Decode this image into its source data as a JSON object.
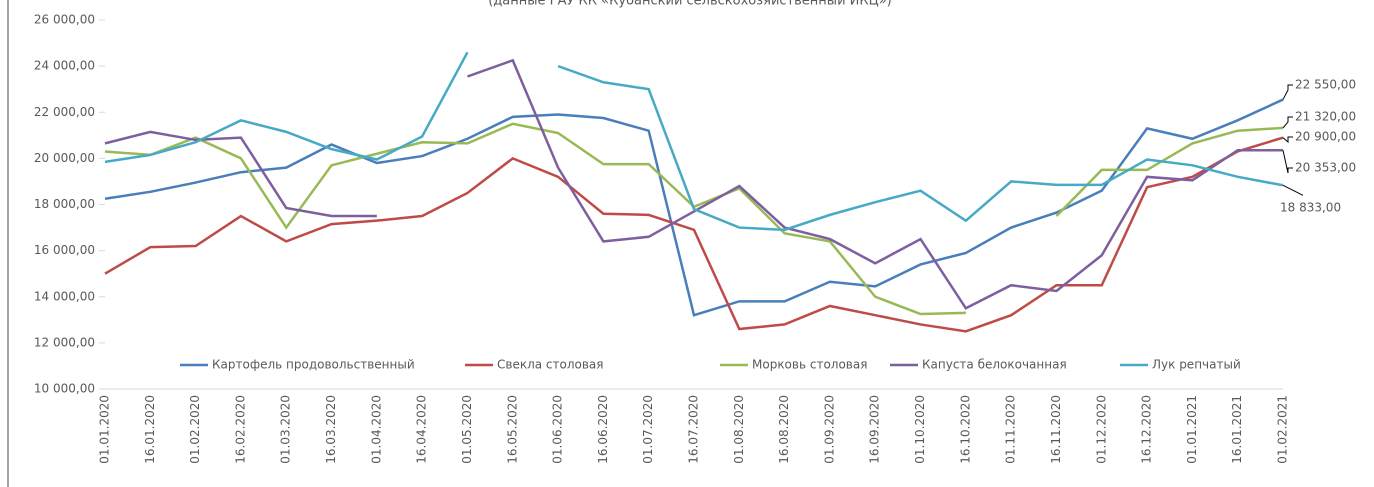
{
  "chart_data": {
    "type": "line",
    "subtitle": "(данные ГАУ КК «Кубанский сельскохозяйственный ИКЦ»)",
    "categories": [
      "01.01.2020",
      "16.01.2020",
      "01.02.2020",
      "16.02.2020",
      "01.03.2020",
      "16.03.2020",
      "01.04.2020",
      "16.04.2020",
      "01.05.2020",
      "16.05.2020",
      "01.06.2020",
      "16.06.2020",
      "01.07.2020",
      "16.07.2020",
      "01.08.2020",
      "16.08.2020",
      "01.09.2020",
      "16.09.2020",
      "01.10.2020",
      "16.10.2020",
      "01.11.2020",
      "16.11.2020",
      "01.12.2020",
      "16.12.2020",
      "01.01.2021",
      "16.01.2021",
      "01.02.2021"
    ],
    "ylim": [
      10000,
      26000
    ],
    "yticks": [
      {
        "value": 10000,
        "label": "10 000,00"
      },
      {
        "value": 12000,
        "label": "12 000,00"
      },
      {
        "value": 14000,
        "label": "14 000,00"
      },
      {
        "value": 16000,
        "label": "16 000,00"
      },
      {
        "value": 18000,
        "label": "18 000,00"
      },
      {
        "value": 20000,
        "label": "20 000,00"
      },
      {
        "value": 22000,
        "label": "22 000,00"
      },
      {
        "value": 24000,
        "label": "24 000,00"
      },
      {
        "value": 26000,
        "label": "26 000,00"
      }
    ],
    "legend": "bottom",
    "series": [
      {
        "name": "Картофель продовольственный",
        "color": "#4a7ebb",
        "values": [
          18250,
          18550,
          18950,
          19400,
          19600,
          20600,
          19800,
          20100,
          20850,
          21800,
          21900,
          21750,
          21200,
          13200,
          13800,
          13800,
          14650,
          14450,
          15400,
          15900,
          17000,
          17650,
          18600,
          21300,
          20850,
          21650,
          22550
        ],
        "value_labels": [
          null,
          null,
          null,
          null,
          null,
          null,
          null,
          null,
          null,
          null,
          null,
          null,
          null,
          null,
          null,
          null,
          null,
          null,
          null,
          null,
          null,
          null,
          null,
          null,
          null,
          null,
          "22 550,00"
        ]
      },
      {
        "name": "Свекла столовая",
        "color": "#be4b48",
        "values": [
          15000,
          16150,
          16200,
          17500,
          16400,
          17150,
          17300,
          17500,
          18500,
          20000,
          19200,
          17600,
          17550,
          16900,
          12600,
          12800,
          13600,
          13200,
          12800,
          12500,
          13200,
          14500,
          14500,
          18750,
          19200,
          20300,
          20900
        ],
        "value_labels": [
          null,
          null,
          null,
          null,
          null,
          null,
          null,
          null,
          null,
          null,
          null,
          null,
          null,
          null,
          null,
          null,
          null,
          null,
          null,
          null,
          null,
          null,
          null,
          null,
          null,
          null,
          "20 900,00"
        ]
      },
      {
        "name": "Морковь столовая",
        "color": "#98b954",
        "values": [
          20300,
          20150,
          20900,
          20000,
          17000,
          19700,
          20200,
          20700,
          20650,
          21500,
          21100,
          19750,
          19750,
          17900,
          18700,
          16750,
          16400,
          14000,
          13250,
          13300,
          null,
          17500,
          19500,
          19500,
          20650,
          21200,
          21320
        ],
        "value_labels": [
          null,
          null,
          null,
          null,
          null,
          null,
          null,
          null,
          null,
          null,
          null,
          null,
          null,
          null,
          null,
          null,
          null,
          null,
          null,
          null,
          null,
          null,
          null,
          null,
          null,
          null,
          "21 320,00"
        ]
      },
      {
        "name": "Капуста белокочанная",
        "color": "#7d5fa0",
        "values": [
          20650,
          21150,
          20800,
          20900,
          17850,
          17500,
          17500,
          null,
          23550,
          24250,
          19600,
          16400,
          16600,
          17700,
          18800,
          17000,
          16500,
          15450,
          16500,
          13500,
          14500,
          14250,
          15800,
          19200,
          19050,
          20353,
          20353
        ],
        "value_labels": [
          null,
          null,
          null,
          null,
          null,
          null,
          null,
          null,
          null,
          null,
          null,
          null,
          null,
          null,
          null,
          null,
          null,
          null,
          null,
          null,
          null,
          null,
          null,
          null,
          null,
          null,
          "20 353,00"
        ]
      },
      {
        "name": "Лук репчатый",
        "color": "#46aac5",
        "values": [
          19850,
          20150,
          20700,
          21650,
          21150,
          20400,
          19950,
          20950,
          24600,
          null,
          24000,
          23300,
          23000,
          17800,
          17000,
          16900,
          17550,
          18100,
          18600,
          17300,
          19000,
          18850,
          18850,
          19950,
          19700,
          19200,
          18833
        ],
        "value_labels": [
          null,
          null,
          null,
          null,
          null,
          null,
          null,
          null,
          null,
          null,
          null,
          null,
          null,
          null,
          null,
          null,
          null,
          null,
          null,
          null,
          null,
          null,
          null,
          null,
          null,
          null,
          "18 833,00"
        ]
      }
    ]
  }
}
